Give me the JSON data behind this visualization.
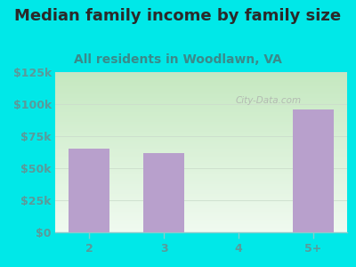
{
  "title": "Median family income by family size",
  "subtitle": "All residents in Woodlawn, VA",
  "categories": [
    "2",
    "3",
    "4",
    "5+"
  ],
  "values": [
    65000,
    62000,
    0,
    96000
  ],
  "bar_color": "#b8a0cc",
  "background_color": "#00e8e8",
  "plot_bg_topleft": "#c5e8c0",
  "plot_bg_topright": "#e8f5e8",
  "plot_bg_bottom": "#f0faf0",
  "title_color": "#2a2a2a",
  "subtitle_color": "#3a8a8a",
  "ytick_color": "#5a9a9a",
  "xtick_color": "#5a9a9a",
  "ytick_labels": [
    "$0",
    "$25k",
    "$50k",
    "$75k",
    "$100k",
    "$125k"
  ],
  "ytick_values": [
    0,
    25000,
    50000,
    75000,
    100000,
    125000
  ],
  "ylim": [
    0,
    125000
  ],
  "watermark": "City-Data.com",
  "title_fontsize": 13,
  "subtitle_fontsize": 10,
  "tick_fontsize": 9
}
